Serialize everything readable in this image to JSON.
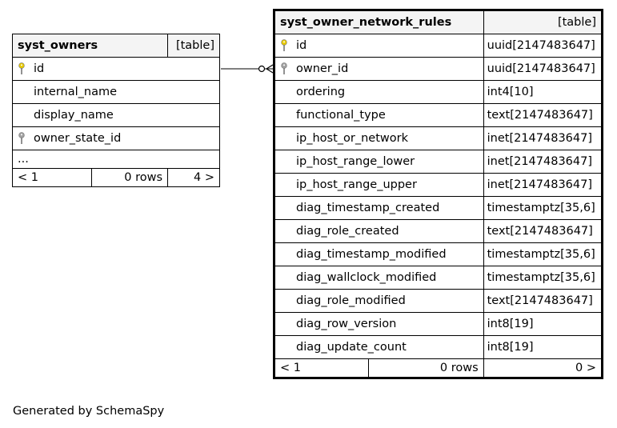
{
  "tables": [
    {
      "name": "syst_owners",
      "kind": "[table]",
      "columns": [
        {
          "name": "id",
          "key": "primary"
        },
        {
          "name": "internal_name",
          "key": "none"
        },
        {
          "name": "display_name",
          "key": "none"
        },
        {
          "name": "owner_state_id",
          "key": "foreign"
        }
      ],
      "more": "...",
      "footer": {
        "left": "< 1",
        "middle": "0 rows",
        "right": "4 >"
      }
    },
    {
      "name": "syst_owner_network_rules",
      "kind": "[table]",
      "columns": [
        {
          "name": "id",
          "type": "uuid[2147483647]",
          "key": "primary"
        },
        {
          "name": "owner_id",
          "type": "uuid[2147483647]",
          "key": "foreign"
        },
        {
          "name": "ordering",
          "type": "int4[10]",
          "key": "none"
        },
        {
          "name": "functional_type",
          "type": "text[2147483647]",
          "key": "none"
        },
        {
          "name": "ip_host_or_network",
          "type": "inet[2147483647]",
          "key": "none"
        },
        {
          "name": "ip_host_range_lower",
          "type": "inet[2147483647]",
          "key": "none"
        },
        {
          "name": "ip_host_range_upper",
          "type": "inet[2147483647]",
          "key": "none"
        },
        {
          "name": "diag_timestamp_created",
          "type": "timestamptz[35,6]",
          "key": "none"
        },
        {
          "name": "diag_role_created",
          "type": "text[2147483647]",
          "key": "none"
        },
        {
          "name": "diag_timestamp_modified",
          "type": "timestamptz[35,6]",
          "key": "none"
        },
        {
          "name": "diag_wallclock_modified",
          "type": "timestamptz[35,6]",
          "key": "none"
        },
        {
          "name": "diag_role_modified",
          "type": "text[2147483647]",
          "key": "none"
        },
        {
          "name": "diag_row_version",
          "type": "int8[19]",
          "key": "none"
        },
        {
          "name": "diag_update_count",
          "type": "int8[19]",
          "key": "none"
        }
      ],
      "footer": {
        "left": "< 1",
        "middle": "0 rows",
        "right": "0 >"
      }
    }
  ],
  "colors": {
    "primary_key": "#e6c800",
    "foreign_key": "#a0a0a0",
    "header_bg": "#f4f4f4"
  },
  "credit": "Generated by SchemaSpy"
}
